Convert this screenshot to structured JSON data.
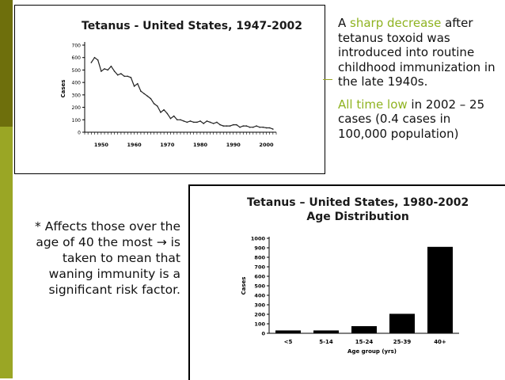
{
  "colors": {
    "highlight": "#8fb321",
    "sidebar_dark": "#6e6f0c",
    "sidebar_light": "#9aa625"
  },
  "text_block": {
    "p1_before": "A ",
    "p1_highlight": "sharp decrease",
    "p1_after": " after tetanus toxoid was introduced into routine childhood immunization in the late 1940s.",
    "p2_highlight": "All time low",
    "p2_after": " in 2002 – 25 cases (0.4 cases in 100,000 population)"
  },
  "note": {
    "prefix": "* Affects those over the age of 40 the most ",
    "arrow": "→",
    "suffix": " is taken to mean that waning immunity is a significant risk factor."
  },
  "chart_data": [
    {
      "type": "line",
      "title": "Tetanus - United States, 1947-2002",
      "ylabel": "Cases",
      "xlabel": "",
      "xlim": [
        1945,
        2003
      ],
      "ylim": [
        0,
        700
      ],
      "x_ticks": [
        1950,
        1960,
        1970,
        1980,
        1990,
        2000
      ],
      "y_ticks": [
        0,
        100,
        200,
        300,
        400,
        500,
        600,
        700
      ],
      "x": [
        1947,
        1948,
        1949,
        1950,
        1951,
        1952,
        1953,
        1954,
        1955,
        1956,
        1957,
        1958,
        1959,
        1960,
        1961,
        1962,
        1963,
        1964,
        1965,
        1966,
        1967,
        1968,
        1969,
        1970,
        1971,
        1972,
        1973,
        1974,
        1975,
        1976,
        1977,
        1978,
        1979,
        1980,
        1981,
        1982,
        1983,
        1984,
        1985,
        1986,
        1987,
        1988,
        1989,
        1990,
        1991,
        1992,
        1993,
        1994,
        1995,
        1996,
        1997,
        1998,
        1999,
        2000,
        2001,
        2002
      ],
      "values": [
        560,
        600,
        580,
        490,
        510,
        500,
        530,
        490,
        460,
        470,
        450,
        450,
        440,
        370,
        390,
        330,
        310,
        290,
        270,
        230,
        210,
        160,
        180,
        150,
        110,
        130,
        100,
        100,
        90,
        80,
        90,
        80,
        80,
        90,
        70,
        90,
        80,
        70,
        80,
        60,
        50,
        50,
        50,
        60,
        60,
        40,
        50,
        50,
        40,
        40,
        50,
        40,
        40,
        35,
        35,
        25
      ]
    },
    {
      "type": "bar",
      "title": "Tetanus – United States, 1980-2002",
      "subtitle": "Age Distribution",
      "xlabel": "Age group (yrs)",
      "ylabel": "Cases",
      "ylim": [
        0,
        1000
      ],
      "y_ticks": [
        0,
        100,
        200,
        300,
        400,
        500,
        600,
        700,
        800,
        900,
        1000
      ],
      "categories": [
        "<5",
        "5-14",
        "15-24",
        "25-39",
        "40+"
      ],
      "values": [
        30,
        30,
        75,
        205,
        910
      ]
    }
  ]
}
